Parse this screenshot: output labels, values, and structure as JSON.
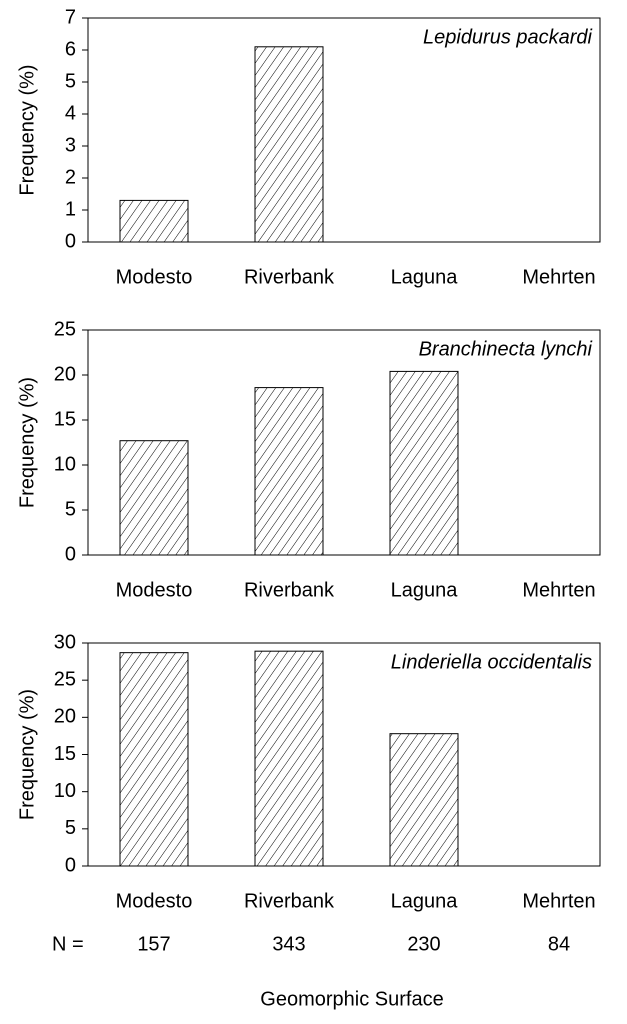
{
  "chart_data": [
    {
      "type": "bar",
      "title": "Lepidurus packardi",
      "ylabel": "Frequency (%)",
      "categories": [
        "Modesto",
        "Riverbank",
        "Laguna",
        "Mehrten"
      ],
      "values": [
        1.3,
        6.1,
        0,
        0
      ],
      "color": "#000000",
      "ylim": [
        0,
        7
      ],
      "yticks": [
        0,
        1,
        2,
        3,
        4,
        5,
        6,
        7
      ]
    },
    {
      "type": "bar",
      "title": "Branchinecta lynchi",
      "ylabel": "Frequency (%)",
      "categories": [
        "Modesto",
        "Riverbank",
        "Laguna",
        "Mehrten"
      ],
      "values": [
        12.7,
        18.6,
        20.4,
        0
      ],
      "color": "#000000",
      "ylim": [
        0,
        25
      ],
      "yticks": [
        0,
        5,
        10,
        15,
        20,
        25
      ]
    },
    {
      "type": "bar",
      "title": "Linderiella occidentalis",
      "ylabel": "Frequency (%)",
      "categories": [
        "Modesto",
        "Riverbank",
        "Laguna",
        "Mehrten"
      ],
      "values": [
        28.7,
        28.9,
        17.8,
        0
      ],
      "color": "#000000",
      "ylim": [
        0,
        30
      ],
      "yticks": [
        0,
        5,
        10,
        15,
        20,
        25,
        30
      ],
      "xlabel": "Geomorphic Surface",
      "n_label": "N =",
      "n": [
        157,
        343,
        230,
        84
      ]
    }
  ]
}
